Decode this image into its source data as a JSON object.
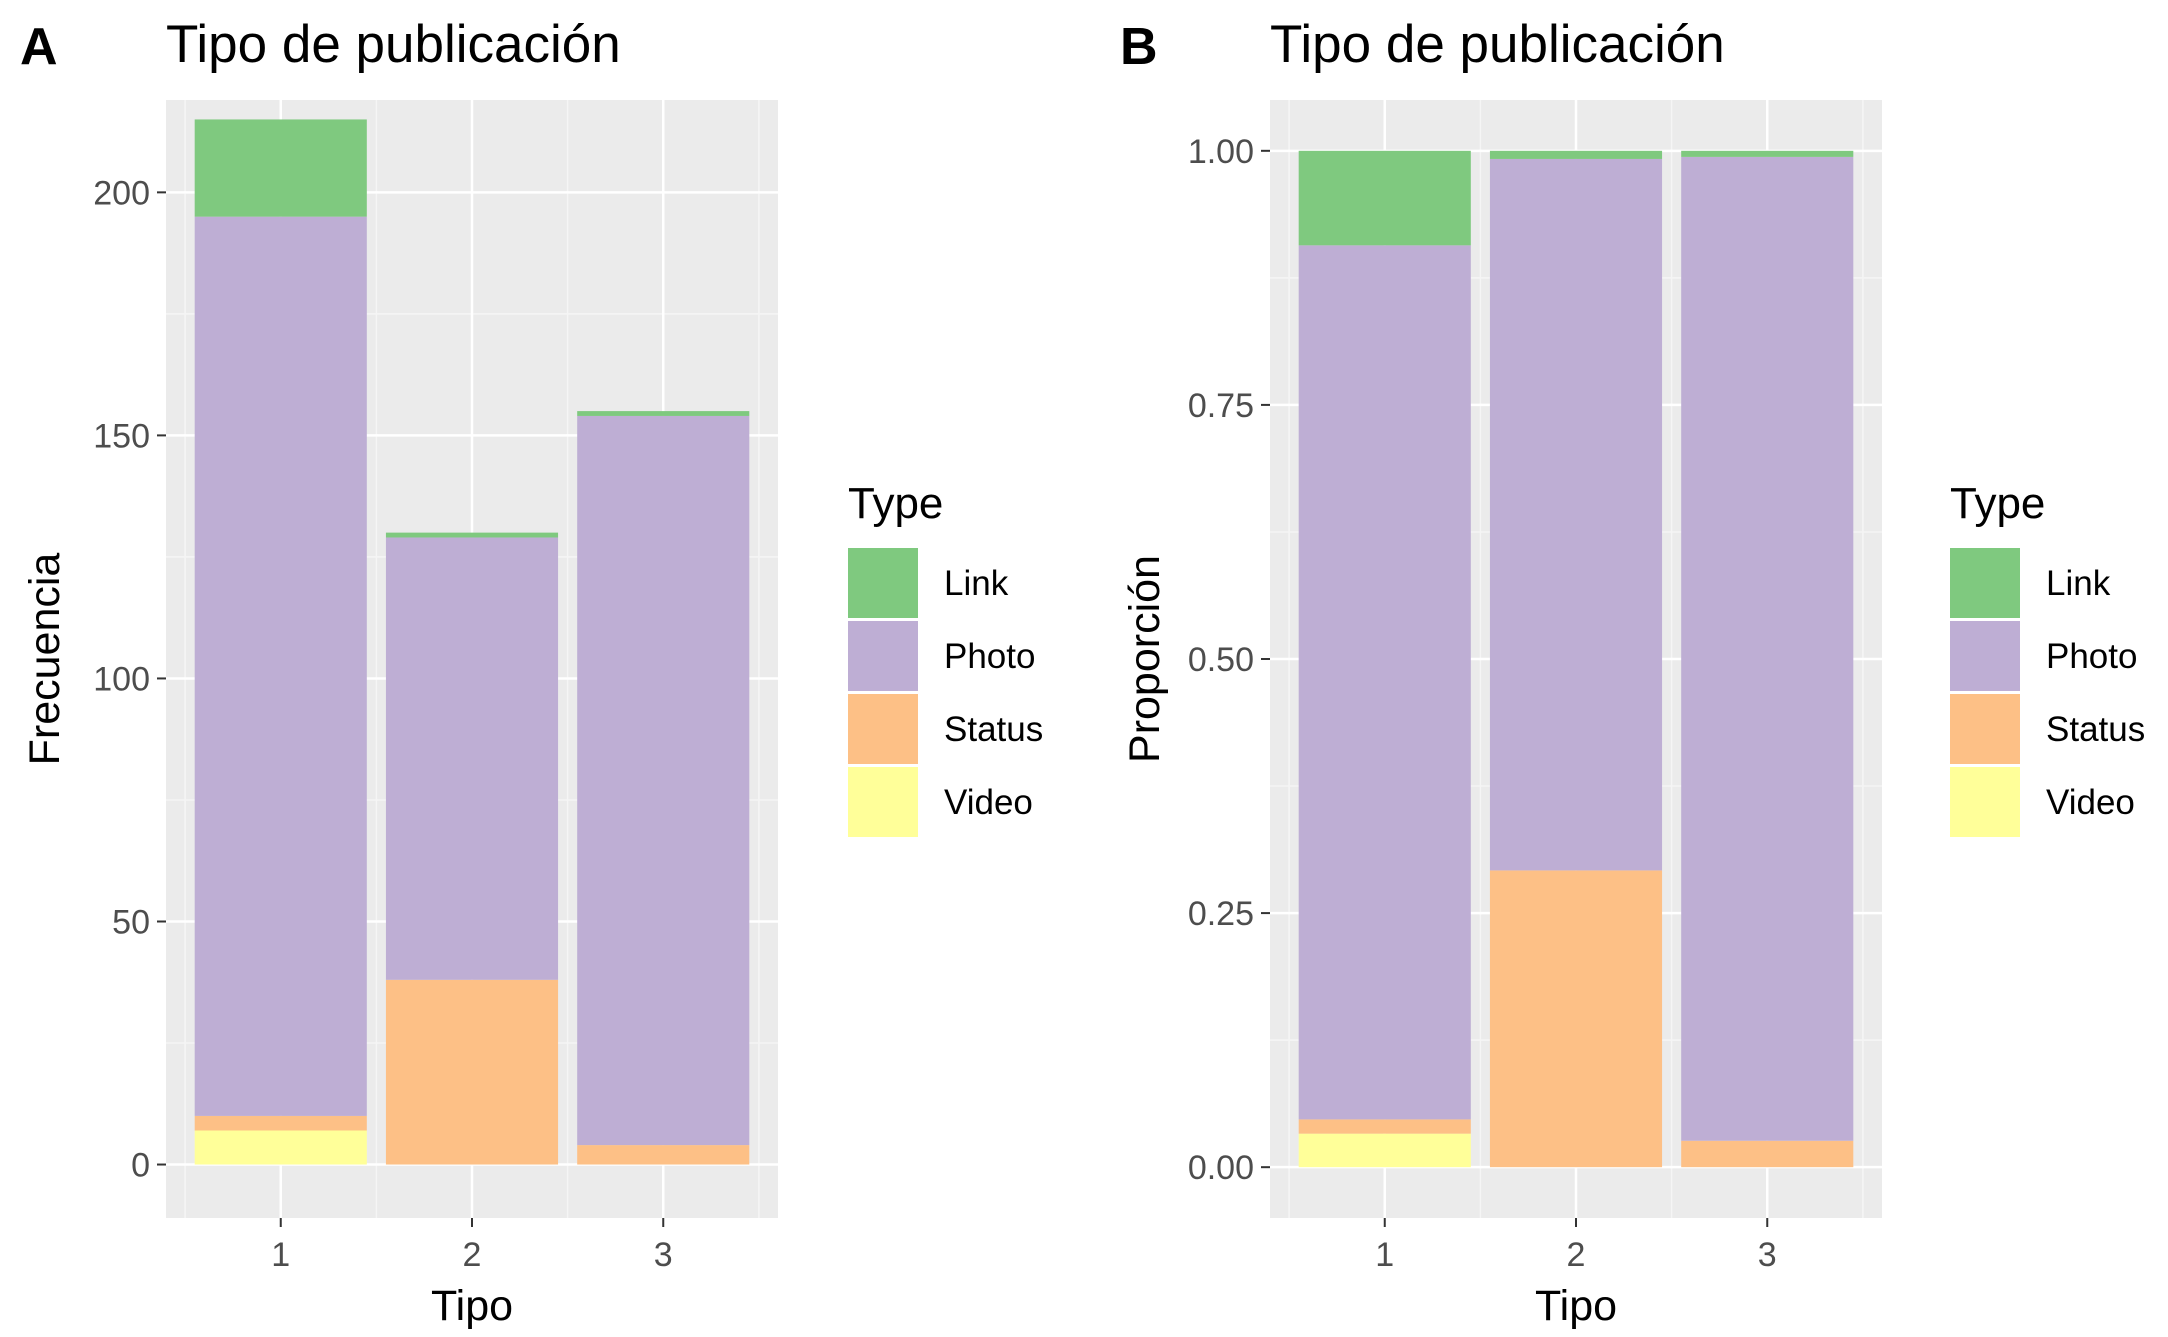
{
  "chart_data": [
    {
      "panel_tag": "A",
      "type": "bar",
      "stacked": true,
      "title": "Tipo de publicación",
      "xlabel": "Tipo",
      "ylabel": "Frecuencia",
      "categories": [
        "1",
        "2",
        "3"
      ],
      "ylim": [
        -11,
        219
      ],
      "yticks": [
        0,
        50,
        100,
        150,
        200
      ],
      "ytick_labels": [
        "0",
        "50",
        "100",
        "150",
        "200"
      ],
      "grid": true,
      "legend_position": "right",
      "series": [
        {
          "name": "Video",
          "color": "#FFFF99",
          "values": [
            7,
            0,
            0
          ]
        },
        {
          "name": "Status",
          "color": "#FDC086",
          "values": [
            3,
            38,
            4
          ]
        },
        {
          "name": "Photo",
          "color": "#BEAED4",
          "values": [
            185,
            91,
            150
          ]
        },
        {
          "name": "Link",
          "color": "#7FC97F",
          "values": [
            20,
            1,
            1
          ]
        }
      ]
    },
    {
      "panel_tag": "B",
      "type": "bar",
      "stacked": true,
      "title": "Tipo de publicación",
      "xlabel": "Tipo",
      "ylabel": "Proporción",
      "categories": [
        "1",
        "2",
        "3"
      ],
      "ylim": [
        -0.05,
        1.05
      ],
      "yticks": [
        0,
        0.25,
        0.5,
        0.75,
        1
      ],
      "ytick_labels": [
        "0.00",
        "0.25",
        "0.50",
        "0.75",
        "1.00"
      ],
      "grid": true,
      "legend_position": "right",
      "series": [
        {
          "name": "Video",
          "color": "#FFFF99",
          "values": [
            0.033,
            0,
            0
          ]
        },
        {
          "name": "Status",
          "color": "#FDC086",
          "values": [
            0.014,
            0.292,
            0.026
          ]
        },
        {
          "name": "Photo",
          "color": "#BEAED4",
          "values": [
            0.86,
            0.7,
            0.968
          ]
        },
        {
          "name": "Link",
          "color": "#7FC97F",
          "values": [
            0.093,
            0.008,
            0.006
          ]
        }
      ]
    }
  ],
  "legend": {
    "title": "Type",
    "items": [
      {
        "label": "Link",
        "color": "#7FC97F"
      },
      {
        "label": "Photo",
        "color": "#BEAED4"
      },
      {
        "label": "Status",
        "color": "#FDC086"
      },
      {
        "label": "Video",
        "color": "#FFFF99"
      }
    ]
  },
  "colors": {
    "panel_background": "#EBEBEB",
    "grid_major": "#FFFFFF",
    "grid_minor": "#F5F5F5",
    "tick_text": "#4D4D4D",
    "text": "#000000"
  }
}
